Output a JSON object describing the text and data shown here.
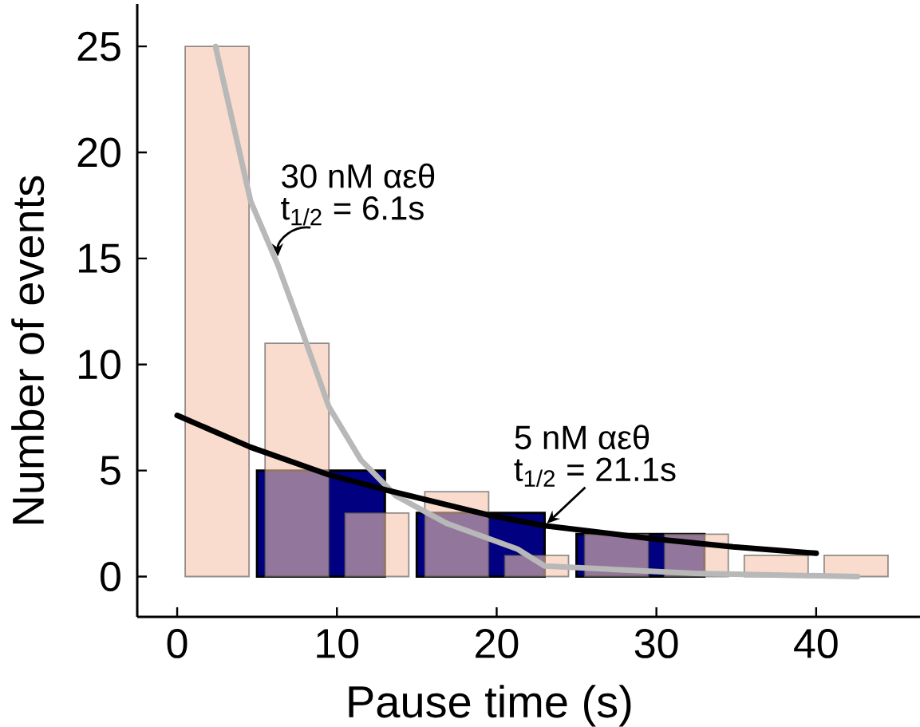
{
  "chart_data": {
    "type": "histogram",
    "xlabel": "Pause time (s)",
    "ylabel": "Number of events",
    "xlim": [
      -2.5,
      46.5
    ],
    "ylim": [
      -1.9,
      27
    ],
    "xticks": [
      0,
      10,
      20,
      30,
      40
    ],
    "yticks": [
      0,
      5,
      10,
      15,
      20,
      25
    ],
    "series": [
      {
        "color": "#000080",
        "bins": [
          5,
          13,
          15,
          23,
          25,
          33
        ],
        "values": [
          5,
          null,
          3,
          null,
          2
        ]
      },
      {
        "color": "#f5c4ae",
        "bins": [
          0.5,
          4.5,
          5.5,
          9.5,
          10.5,
          14.5,
          15.5,
          19.5,
          20.5,
          24.5,
          25.5,
          29.5,
          30.5,
          34.5,
          35.5,
          39.5,
          40.5,
          44.5
        ],
        "values": [
          25,
          null,
          11,
          null,
          3,
          null,
          4,
          null,
          1,
          null,
          2,
          null,
          2,
          null,
          1,
          null,
          1
        ]
      },
      {
        "type": "line",
        "color": "#b8b8b8",
        "x": [
          2.4,
          4.6,
          6.3,
          7.9,
          9.5,
          11.5,
          13.7,
          16.9,
          21.3,
          23,
          32.4,
          42.6
        ],
        "values": [
          25,
          17.7,
          14.7,
          11.4,
          8.0,
          5.5,
          3.8,
          2.5,
          1.3,
          0.5,
          0.15,
          0
        ]
      },
      {
        "type": "line",
        "color": "#000000",
        "x": [
          0,
          4.6,
          9.5,
          13,
          19.5,
          23,
          29.6,
          34.8,
          40
        ],
        "values": [
          7.6,
          6.1,
          4.8,
          4.1,
          2.9,
          2.4,
          1.8,
          1.4,
          1.1
        ]
      }
    ],
    "annotations": [
      "30 nM αεθ",
      {
        "text": "t$_{1/2}$ = 6.1s",
        "x": 6.3,
        "y": 15.1
      },
      "5 nM αεθ",
      {
        "text": "t$_{1/2}$ = 21.1s",
        "x": 23,
        "y": 2.4
      }
    ]
  }
}
